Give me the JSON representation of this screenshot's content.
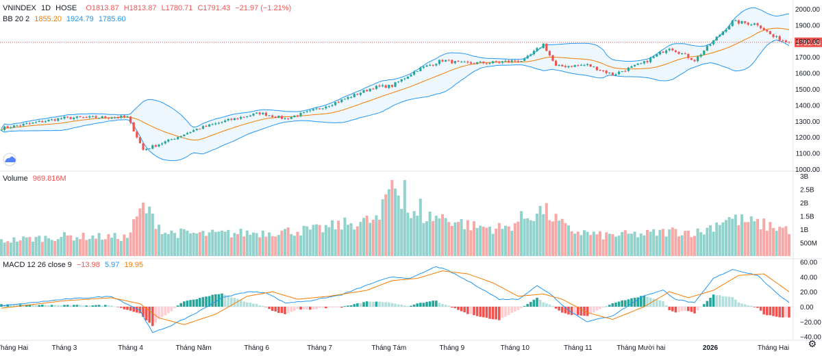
{
  "header": {
    "symbol": "VNINDEX",
    "interval": "1D",
    "exchange": "HOSE",
    "open": "O1813.87",
    "high": "H1813.87",
    "low": "L1780.71",
    "close": "C1791.43",
    "change": "−21.97 (−1.21%)"
  },
  "bb_legend": {
    "label": "BB 20 2",
    "basis": "1855.20",
    "upper": "1924.79",
    "lower": "1785.60"
  },
  "volume_legend": {
    "label": "Volume",
    "value": "969.816M"
  },
  "macd_legend": {
    "label": "MACD 12 26 close 9",
    "hist": "−13.98",
    "macd": "5.97",
    "signal": "19.95"
  },
  "colors": {
    "up": "#26a69a",
    "down": "#ef5350",
    "bb_band": "#2196f3",
    "bb_basis": "#f57c00",
    "macd_line": "#2196f3",
    "signal_line": "#f57c00"
  },
  "icons": {
    "logo": "tradingview-cloud-icon",
    "settings": "gear-icon"
  },
  "chart_data": [
    {
      "type": "candlestick",
      "title": "VNINDEX 1D HOSE",
      "ylim": [
        1000,
        2000
      ],
      "y_ticks": [
        "1000.00",
        "1100.00",
        "1200.00",
        "1300.00",
        "1400.00",
        "1500.00",
        "1600.00",
        "1700.00",
        "1800.00",
        "1900.00",
        "2000.00"
      ],
      "last_price_label": "1791.43",
      "last_price": 1791.43,
      "x_labels": [
        "Tháng Hai",
        "Tháng 3",
        "Tháng 4",
        "Tháng Năm",
        "Tháng 6",
        "Tháng 7",
        "Tháng Tám",
        "Tháng 9",
        "Tháng 10",
        "Tháng 11",
        "Tháng Mười hai",
        "2026",
        "Tháng Hai"
      ],
      "x_label_index": [
        0,
        20,
        41,
        61,
        81,
        101,
        123,
        143,
        163,
        183,
        203,
        225,
        245
      ],
      "bars": 251,
      "trend_anchors": [
        [
          0,
          1255
        ],
        [
          20,
          1320
        ],
        [
          40,
          1325
        ],
        [
          45,
          1120
        ],
        [
          52,
          1170
        ],
        [
          62,
          1250
        ],
        [
          72,
          1305
        ],
        [
          82,
          1350
        ],
        [
          90,
          1315
        ],
        [
          98,
          1360
        ],
        [
          108,
          1430
        ],
        [
          118,
          1510
        ],
        [
          124,
          1520
        ],
        [
          132,
          1620
        ],
        [
          140,
          1680
        ],
        [
          146,
          1660
        ],
        [
          156,
          1665
        ],
        [
          166,
          1680
        ],
        [
          172,
          1780
        ],
        [
          176,
          1640
        ],
        [
          186,
          1650
        ],
        [
          194,
          1590
        ],
        [
          204,
          1665
        ],
        [
          212,
          1760
        ],
        [
          220,
          1680
        ],
        [
          232,
          1920
        ],
        [
          240,
          1905
        ],
        [
          245,
          1825
        ],
        [
          250,
          1791
        ]
      ]
    },
    {
      "type": "bar",
      "title": "Volume",
      "ylim": [
        0,
        3000000000
      ],
      "y_ticks": [
        "500M",
        "1B",
        "1.5B",
        "2B",
        "2.5B",
        "3B"
      ],
      "y_tick_values": [
        500000000,
        1000000000,
        1500000000,
        2000000000,
        2500000000,
        3000000000
      ],
      "volume_anchors": [
        [
          0,
          560
        ],
        [
          20,
          720
        ],
        [
          40,
          690
        ],
        [
          45,
          1820
        ],
        [
          52,
          860
        ],
        [
          65,
          800
        ],
        [
          80,
          850
        ],
        [
          90,
          910
        ],
        [
          100,
          960
        ],
        [
          110,
          1190
        ],
        [
          120,
          1330
        ],
        [
          124,
          2880
        ],
        [
          130,
          1460
        ],
        [
          140,
          1420
        ],
        [
          150,
          1080
        ],
        [
          160,
          1010
        ],
        [
          165,
          1360
        ],
        [
          172,
          1690
        ],
        [
          180,
          960
        ],
        [
          190,
          750
        ],
        [
          204,
          800
        ],
        [
          214,
          920
        ],
        [
          222,
          860
        ],
        [
          230,
          1400
        ],
        [
          240,
          1180
        ],
        [
          250,
          980
        ]
      ]
    },
    {
      "type": "line",
      "title": "MACD 12 26 close 9",
      "ylim": [
        -45,
        62
      ],
      "y_ticks": [
        "−40.00",
        "−20.00",
        "0.00",
        "20.00",
        "40.00",
        "60.00"
      ],
      "y_tick_values": [
        -40,
        -20,
        0,
        20,
        40,
        60
      ],
      "series": [
        {
          "name": "MACD",
          "anchors": [
            [
              0,
              1
            ],
            [
              20,
              10
            ],
            [
              35,
              14
            ],
            [
              44,
              -5
            ],
            [
              48,
              -35
            ],
            [
              54,
              -25
            ],
            [
              62,
              -8
            ],
            [
              70,
              12
            ],
            [
              78,
              20
            ],
            [
              84,
              19
            ],
            [
              90,
              5
            ],
            [
              98,
              8
            ],
            [
              108,
              16
            ],
            [
              118,
              32
            ],
            [
              124,
              40
            ],
            [
              130,
              38
            ],
            [
              138,
              54
            ],
            [
              142,
              48
            ],
            [
              150,
              30
            ],
            [
              158,
              10
            ],
            [
              164,
              10
            ],
            [
              170,
              28
            ],
            [
              174,
              18
            ],
            [
              180,
              -5
            ],
            [
              186,
              -20
            ],
            [
              194,
              -12
            ],
            [
              204,
              15
            ],
            [
              210,
              22
            ],
            [
              214,
              10
            ],
            [
              220,
              5
            ],
            [
              226,
              38
            ],
            [
              232,
              50
            ],
            [
              240,
              42
            ],
            [
              246,
              18
            ],
            [
              250,
              6
            ]
          ]
        },
        {
          "name": "Signal",
          "anchors": [
            [
              0,
              -2
            ],
            [
              20,
              8
            ],
            [
              35,
              12
            ],
            [
              44,
              4
            ],
            [
              50,
              -15
            ],
            [
              58,
              -24
            ],
            [
              68,
              -10
            ],
            [
              78,
              14
            ],
            [
              86,
              20
            ],
            [
              94,
              10
            ],
            [
              104,
              14
            ],
            [
              116,
              22
            ],
            [
              124,
              35
            ],
            [
              132,
              38
            ],
            [
              140,
              48
            ],
            [
              148,
              44
            ],
            [
              156,
              32
            ],
            [
              164,
              14
            ],
            [
              172,
              17
            ],
            [
              178,
              10
            ],
            [
              186,
              -8
            ],
            [
              194,
              -17
            ],
            [
              204,
              0
            ],
            [
              212,
              20
            ],
            [
              218,
              12
            ],
            [
              226,
              22
            ],
            [
              234,
              42
            ],
            [
              242,
              44
            ],
            [
              250,
              20
            ]
          ]
        }
      ]
    }
  ]
}
